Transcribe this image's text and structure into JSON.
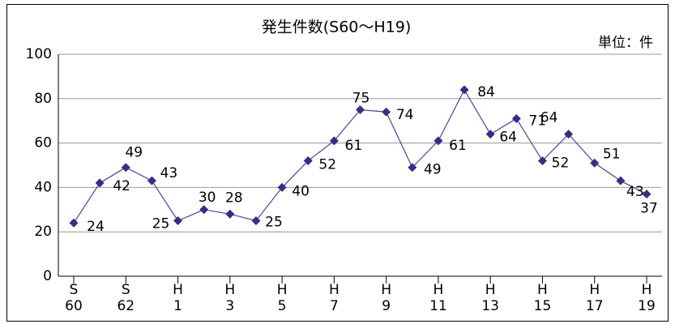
{
  "chart_data": {
    "type": "line",
    "title": "発生件数(S60～H19)",
    "unit": "単位：件",
    "categories": [
      [
        "S",
        "60"
      ],
      null,
      [
        "S",
        "62"
      ],
      null,
      [
        "H",
        "1"
      ],
      null,
      [
        "H",
        "3"
      ],
      null,
      [
        "H",
        "5"
      ],
      null,
      [
        "H",
        "7"
      ],
      null,
      [
        "H",
        "9"
      ],
      null,
      [
        "H",
        "11"
      ],
      null,
      [
        "H",
        "13"
      ],
      null,
      [
        "H",
        "15"
      ],
      null,
      [
        "H",
        "17"
      ],
      null,
      [
        "H",
        "19"
      ]
    ],
    "series": [
      {
        "color": "#5a3c9c",
        "values": [
          24,
          42,
          49,
          43,
          25,
          30,
          28,
          25,
          40,
          52,
          61,
          75,
          74,
          49,
          61,
          84,
          64,
          71,
          52,
          64,
          51,
          43,
          37
        ]
      }
    ],
    "ylim": [
      0,
      100
    ],
    "yticks": [
      0,
      20,
      40,
      60,
      80,
      100
    ],
    "grid": true
  }
}
